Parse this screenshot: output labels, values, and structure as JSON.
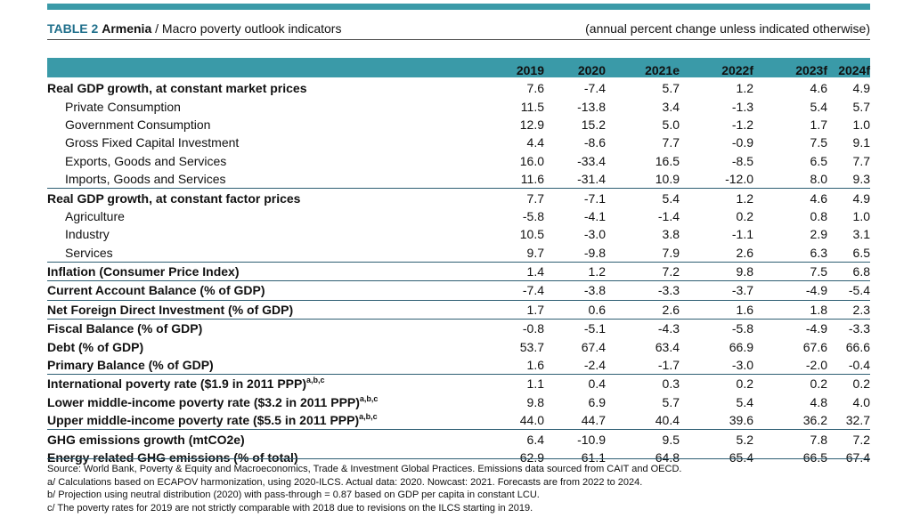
{
  "colors": {
    "accent": "#3a9aa8",
    "rule": "#2e5e73",
    "title_blue": "#1f6f8b"
  },
  "header": {
    "table_label": "TABLE 2",
    "country": "Armenia",
    "separator": " / ",
    "title": "Macro poverty outlook indicators",
    "unit_note": "(annual percent change unless indicated otherwise)"
  },
  "columns": [
    "2019",
    "2020",
    "2021e",
    "2022f",
    "2023f",
    "2024f"
  ],
  "rows": [
    {
      "label": "Real GDP growth, at constant market prices",
      "bold": true,
      "indent": false,
      "sup": "",
      "values": [
        "7.6",
        "-7.4",
        "5.7",
        "1.2",
        "4.6",
        "4.9"
      ]
    },
    {
      "label": "Private Consumption",
      "bold": false,
      "indent": true,
      "sup": "",
      "values": [
        "11.5",
        "-13.8",
        "3.4",
        "-1.3",
        "5.4",
        "5.7"
      ]
    },
    {
      "label": "Government Consumption",
      "bold": false,
      "indent": true,
      "sup": "",
      "values": [
        "12.9",
        "15.2",
        "5.0",
        "-1.2",
        "1.7",
        "1.0"
      ]
    },
    {
      "label": "Gross Fixed Capital Investment",
      "bold": false,
      "indent": true,
      "sup": "",
      "values": [
        "4.4",
        "-8.6",
        "7.7",
        "-0.9",
        "7.5",
        "9.1"
      ]
    },
    {
      "label": "Exports, Goods and Services",
      "bold": false,
      "indent": true,
      "sup": "",
      "values": [
        "16.0",
        "-33.4",
        "16.5",
        "-8.5",
        "6.5",
        "7.7"
      ]
    },
    {
      "label": "Imports, Goods and Services",
      "bold": false,
      "indent": true,
      "sup": "",
      "values": [
        "11.6",
        "-31.4",
        "10.9",
        "-12.0",
        "8.0",
        "9.3"
      ]
    },
    {
      "label": "Real GDP growth, at constant factor prices",
      "bold": true,
      "indent": false,
      "sup": "",
      "sep": true,
      "values": [
        "7.7",
        "-7.1",
        "5.4",
        "1.2",
        "4.6",
        "4.9"
      ]
    },
    {
      "label": "Agriculture",
      "bold": false,
      "indent": true,
      "sup": "",
      "values": [
        "-5.8",
        "-4.1",
        "-1.4",
        "0.2",
        "0.8",
        "1.0"
      ]
    },
    {
      "label": "Industry",
      "bold": false,
      "indent": true,
      "sup": "",
      "values": [
        "10.5",
        "-3.0",
        "3.8",
        "-1.1",
        "2.9",
        "3.1"
      ]
    },
    {
      "label": "Services",
      "bold": false,
      "indent": true,
      "sup": "",
      "values": [
        "9.7",
        "-9.8",
        "7.9",
        "2.6",
        "6.3",
        "6.5"
      ]
    },
    {
      "label": "Inflation (Consumer Price Index)",
      "bold": true,
      "indent": false,
      "sup": "",
      "sep": true,
      "values": [
        "1.4",
        "1.2",
        "7.2",
        "9.8",
        "7.5",
        "6.8"
      ]
    },
    {
      "label": "Current Account Balance (% of GDP)",
      "bold": true,
      "indent": false,
      "sup": "",
      "sep": true,
      "values": [
        "-7.4",
        "-3.8",
        "-3.3",
        "-3.7",
        "-4.9",
        "-5.4"
      ]
    },
    {
      "label": "Net Foreign Direct Investment (% of GDP)",
      "bold": true,
      "indent": false,
      "sup": "",
      "sep": true,
      "values": [
        "1.7",
        "0.6",
        "2.6",
        "1.6",
        "1.8",
        "2.3"
      ]
    },
    {
      "label": "Fiscal Balance (% of GDP)",
      "bold": true,
      "indent": false,
      "sup": "",
      "sep": true,
      "values": [
        "-0.8",
        "-5.1",
        "-4.3",
        "-5.8",
        "-4.9",
        "-3.3"
      ]
    },
    {
      "label": "Debt (% of GDP)",
      "bold": true,
      "indent": false,
      "sup": "",
      "values": [
        "53.7",
        "67.4",
        "63.4",
        "66.9",
        "67.6",
        "66.6"
      ]
    },
    {
      "label": "Primary Balance (% of GDP)",
      "bold": true,
      "indent": false,
      "sup": "",
      "values": [
        "1.6",
        "-2.4",
        "-1.7",
        "-3.0",
        "-2.0",
        "-0.4"
      ]
    },
    {
      "label": "International poverty rate ($1.9 in 2011 PPP)",
      "bold": true,
      "indent": false,
      "sup": "a,b,c",
      "sep": true,
      "values": [
        "1.1",
        "0.4",
        "0.3",
        "0.2",
        "0.2",
        "0.2"
      ]
    },
    {
      "label": "Lower middle-income poverty rate ($3.2 in 2011 PPP)",
      "bold": true,
      "indent": false,
      "sup": "a,b,c",
      "values": [
        "9.8",
        "6.9",
        "5.7",
        "5.4",
        "4.8",
        "4.0"
      ]
    },
    {
      "label": "Upper middle-income poverty rate ($5.5 in 2011 PPP)",
      "bold": true,
      "indent": false,
      "sup": "a,b,c",
      "values": [
        "44.0",
        "44.7",
        "40.4",
        "39.6",
        "36.2",
        "32.7"
      ]
    },
    {
      "label": "GHG emissions growth (mtCO2e)",
      "bold": true,
      "indent": false,
      "sup": "",
      "sep": true,
      "values": [
        "6.4",
        "-10.9",
        "9.5",
        "5.2",
        "7.8",
        "7.2"
      ]
    },
    {
      "label": "Energy related GHG emissions (% of total)",
      "bold": true,
      "indent": false,
      "sup": "",
      "values": [
        "62.9",
        "61.1",
        "64.8",
        "65.4",
        "66.5",
        "67.4"
      ]
    }
  ],
  "notes": [
    "Source: World Bank, Poverty & Equity and Macroeconomics, Trade & Investment Global Practices. Emissions data sourced from CAIT and OECD.",
    "a/ Calculations based on ECAPOV harmonization, using 2020-ILCS. Actual data: 2020. Nowcast: 2021. Forecasts are from 2022 to 2024.",
    "b/ Projection using neutral distribution (2020) with pass-through = 0.87 based on GDP per capita in constant LCU.",
    "c/ The poverty rates for 2019 are not strictly comparable with 2018 due to revisions on the ILCS starting in 2019."
  ]
}
